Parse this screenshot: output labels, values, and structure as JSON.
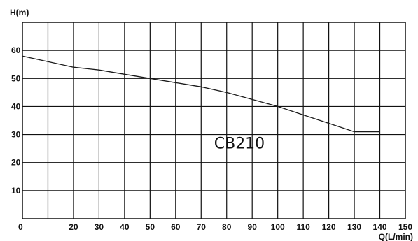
{
  "chart_data": {
    "type": "line",
    "xlabel": "Q(L/min)",
    "ylabel": "H(m)",
    "xlim": [
      0,
      150
    ],
    "ylim": [
      0,
      70
    ],
    "x_ticks": [
      0,
      20,
      30,
      40,
      50,
      60,
      70,
      80,
      90,
      100,
      110,
      120,
      130,
      140,
      150
    ],
    "y_ticks": [
      10,
      20,
      30,
      40,
      50,
      60
    ],
    "grid": true,
    "series": [
      {
        "x": [
          0,
          10,
          20,
          30,
          40,
          50,
          60,
          70,
          80,
          90,
          100,
          110,
          120,
          130,
          140
        ],
        "y": [
          58,
          56,
          54,
          53,
          51.5,
          50,
          48.5,
          47,
          45,
          42.5,
          40,
          37,
          34,
          31,
          31
        ],
        "color": "#1a1a1a"
      }
    ],
    "annotation": "CB210",
    "annotation_at": {
      "x": 85,
      "y": 25
    }
  }
}
